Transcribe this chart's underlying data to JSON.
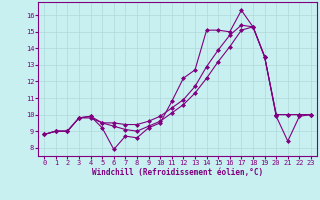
{
  "xlabel": "Windchill (Refroidissement éolien,°C)",
  "bg_color": "#c8f0f0",
  "line_color": "#800080",
  "grid_color": "#b0d8d8",
  "series": [
    [
      8.8,
      9.0,
      9.0,
      9.8,
      9.9,
      9.2,
      7.9,
      8.7,
      8.6,
      9.2,
      9.5,
      10.8,
      12.2,
      12.7,
      15.1,
      15.1,
      15.0,
      16.3,
      15.3,
      13.5,
      9.9,
      8.4,
      9.9,
      10.0
    ],
    [
      8.8,
      9.0,
      9.0,
      9.8,
      9.9,
      9.5,
      9.3,
      9.1,
      9.0,
      9.3,
      9.6,
      10.1,
      10.6,
      11.3,
      12.2,
      13.2,
      14.1,
      15.1,
      15.3,
      13.5,
      10.0,
      10.0,
      10.0,
      10.0
    ],
    [
      8.8,
      9.0,
      9.0,
      9.8,
      9.8,
      9.5,
      9.5,
      9.4,
      9.4,
      9.6,
      9.9,
      10.4,
      10.9,
      11.7,
      12.9,
      13.9,
      14.8,
      15.4,
      15.3,
      13.5,
      10.0,
      10.0,
      10.0,
      10.0
    ]
  ],
  "x_values": [
    0,
    1,
    2,
    3,
    4,
    5,
    6,
    7,
    8,
    9,
    10,
    11,
    12,
    13,
    14,
    15,
    16,
    17,
    18,
    19,
    20,
    21,
    22,
    23
  ],
  "ylim": [
    7.5,
    16.8
  ],
  "yticks": [
    8,
    9,
    10,
    11,
    12,
    13,
    14,
    15,
    16
  ],
  "xlim": [
    -0.5,
    23.5
  ],
  "marker": "D",
  "markersize": 2,
  "linewidth": 0.8,
  "tick_fontsize": 5.0,
  "xlabel_fontsize": 5.5
}
